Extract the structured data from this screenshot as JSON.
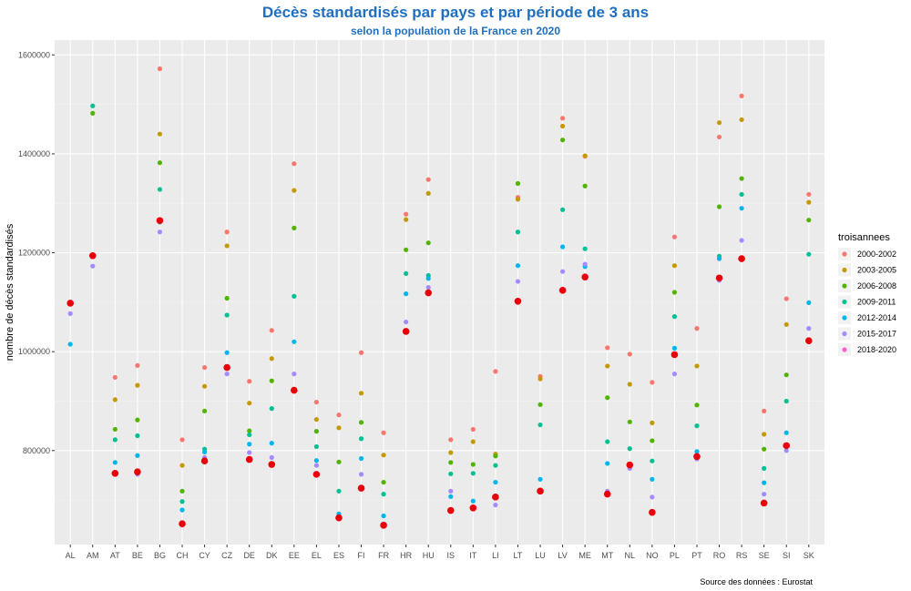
{
  "chart_data": {
    "type": "scatter",
    "title": "Décès standardisés par pays et par période de 3 ans",
    "subtitle": "selon la population de la France en 2020",
    "ylabel": "nombre de décès standardisés",
    "xlabel": "",
    "caption": "Source des données : Eurostat",
    "ylim": [
      610000,
      1630000
    ],
    "yticks": [
      800000,
      1000000,
      1200000,
      1400000,
      1600000
    ],
    "ytick_labels": [
      "800000",
      "1000000",
      "1200000",
      "1400000",
      "1600000"
    ],
    "grid": true,
    "legend_position": "right",
    "legend_title": "troisannees",
    "highlight_color": "#e8000b",
    "categories": [
      "AL",
      "AM",
      "AT",
      "BE",
      "BG",
      "CH",
      "CY",
      "CZ",
      "DE",
      "DK",
      "EE",
      "EL",
      "ES",
      "FI",
      "FR",
      "HR",
      "HU",
      "IS",
      "IT",
      "LI",
      "LT",
      "LU",
      "LV",
      "ME",
      "MT",
      "NL",
      "NO",
      "PL",
      "PT",
      "RO",
      "RS",
      "SE",
      "SI",
      "SK"
    ],
    "series": [
      {
        "name": "2000-2002",
        "color": "#f8766d",
        "values": [
          null,
          null,
          948000,
          972000,
          1572000,
          822000,
          968000,
          1242000,
          940000,
          1043000,
          1380000,
          898000,
          872000,
          998000,
          836000,
          1278000,
          1348000,
          822000,
          843000,
          960000,
          1312000,
          950000,
          1472000,
          1395000,
          1008000,
          995000,
          938000,
          1232000,
          1047000,
          1434000,
          1517000,
          880000,
          1107000,
          1318000
        ]
      },
      {
        "name": "2003-2005",
        "color": "#c49a00",
        "values": [
          null,
          null,
          903000,
          932000,
          1440000,
          770000,
          930000,
          1214000,
          896000,
          986000,
          1326000,
          863000,
          846000,
          916000,
          791000,
          1267000,
          1320000,
          796000,
          818000,
          793000,
          1308000,
          945000,
          1456000,
          1396000,
          971000,
          934000,
          856000,
          1174000,
          971000,
          1463000,
          1469000,
          833000,
          1055000,
          1302000
        ]
      },
      {
        "name": "2006-2008",
        "color": "#53b400",
        "values": [
          null,
          1482000,
          843000,
          862000,
          1382000,
          718000,
          880000,
          1108000,
          840000,
          941000,
          1250000,
          839000,
          777000,
          857000,
          736000,
          1206000,
          1220000,
          776000,
          772000,
          789000,
          1340000,
          893000,
          1428000,
          1335000,
          907000,
          858000,
          820000,
          1120000,
          892000,
          1293000,
          1350000,
          803000,
          953000,
          1266000
        ]
      },
      {
        "name": "2009-2011",
        "color": "#00c094",
        "values": [
          null,
          1497000,
          822000,
          830000,
          1328000,
          697000,
          803000,
          1074000,
          832000,
          885000,
          1112000,
          808000,
          718000,
          824000,
          712000,
          1158000,
          1154000,
          753000,
          754000,
          770000,
          1242000,
          852000,
          1287000,
          1208000,
          818000,
          804000,
          779000,
          1071000,
          850000,
          1193000,
          1318000,
          764000,
          900000,
          1197000
        ]
      },
      {
        "name": "2012-2014",
        "color": "#00b6eb",
        "values": [
          1015000,
          null,
          776000,
          790000,
          1262000,
          680000,
          797000,
          998000,
          813000,
          815000,
          1020000,
          780000,
          672000,
          784000,
          668000,
          1117000,
          1148000,
          707000,
          698000,
          736000,
          1174000,
          742000,
          1212000,
          1172000,
          774000,
          768000,
          742000,
          1007000,
          798000,
          1188000,
          1290000,
          735000,
          836000,
          1099000
        ]
      },
      {
        "name": "2015-2017",
        "color": "#a58aff",
        "values": [
          1077000,
          1173000,
          755000,
          752000,
          1242000,
          650000,
          786000,
          955000,
          796000,
          786000,
          955000,
          770000,
          663000,
          752000,
          652000,
          1060000,
          1130000,
          718000,
          683000,
          690000,
          1142000,
          720000,
          1162000,
          1177000,
          718000,
          764000,
          706000,
          955000,
          783000,
          1144000,
          1225000,
          712000,
          800000,
          1047000
        ]
      },
      {
        "name": "2018-2020",
        "color": "#fb61d7",
        "values": [
          1098000,
          1194000,
          754000,
          757000,
          1265000,
          652000,
          779000,
          968000,
          782000,
          772000,
          922000,
          752000,
          664000,
          724000,
          649000,
          1041000,
          1119000,
          679000,
          684000,
          706000,
          1102000,
          718000,
          1124000,
          1151000,
          712000,
          771000,
          675000,
          994000,
          788000,
          1149000,
          1188000,
          694000,
          810000,
          1022000
        ]
      }
    ]
  }
}
